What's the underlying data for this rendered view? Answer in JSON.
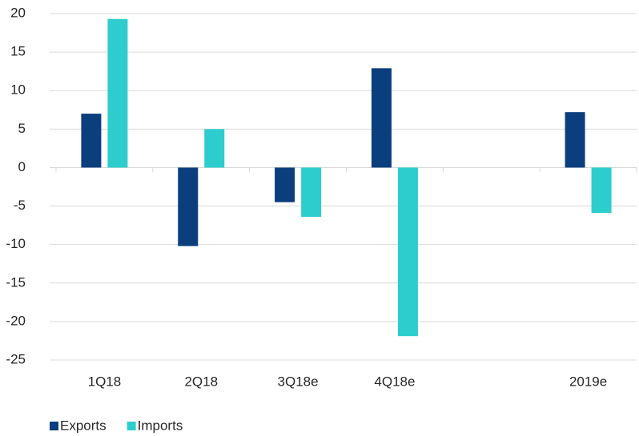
{
  "chart_data": {
    "type": "bar",
    "categories": [
      "1Q18",
      "2Q18",
      "3Q18e",
      "4Q18e",
      null,
      "2019e"
    ],
    "series": [
      {
        "name": "Exports",
        "color": "#0b3e7c",
        "values": [
          7.0,
          -10.2,
          -4.5,
          12.9,
          null,
          7.2
        ]
      },
      {
        "name": "Imports",
        "color": "#2ecdcd",
        "values": [
          19.3,
          5.0,
          -6.4,
          -21.9,
          null,
          -5.9
        ]
      }
    ],
    "ylim": [
      -25,
      20
    ],
    "yticks": [
      -25,
      -20,
      -15,
      -10,
      -5,
      0,
      5,
      10,
      15,
      20
    ],
    "grid": true,
    "legend": "bottom-left"
  }
}
